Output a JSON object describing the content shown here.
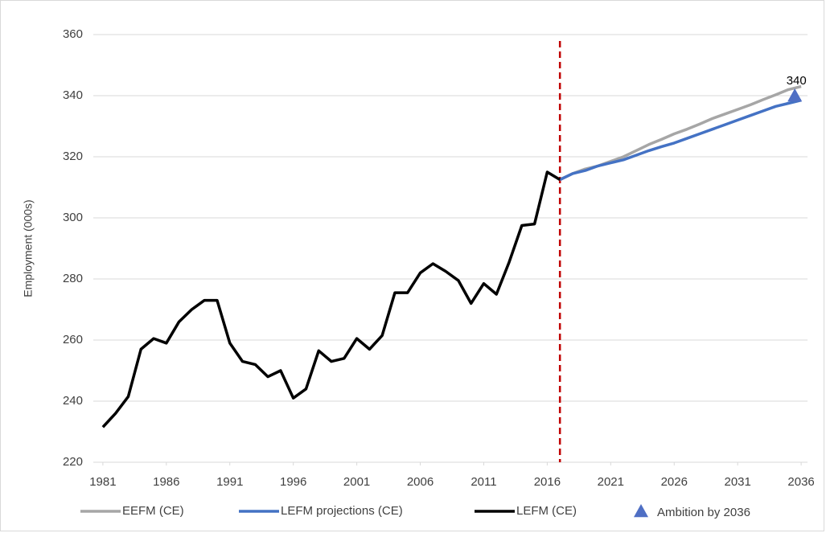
{
  "chart_data": {
    "type": "line",
    "y_label": "Employment (000s)",
    "xlim": [
      1980.5,
      2036.5
    ],
    "xticks": [
      1981,
      1986,
      1991,
      1996,
      2001,
      2006,
      2011,
      2016,
      2021,
      2026,
      2031,
      2036
    ],
    "ylim": [
      220,
      360
    ],
    "yticks": [
      220,
      240,
      260,
      280,
      300,
      320,
      340,
      360
    ],
    "grid": true,
    "vline": {
      "x": 2017,
      "color": "#c00000"
    },
    "legend": "bottom",
    "series": [
      {
        "name": "EEFM (CE)",
        "color": "#a6a6a6",
        "x": [
          2017,
          2018,
          2019,
          2020,
          2021,
          2022,
          2023,
          2024,
          2025,
          2026,
          2027,
          2028,
          2029,
          2030,
          2031,
          2032,
          2033,
          2034,
          2035,
          2036
        ],
        "values": [
          312.5,
          314.5,
          316,
          317,
          318.5,
          320,
          322,
          324,
          325.7,
          327.5,
          329,
          330.7,
          332.5,
          334,
          335.5,
          337,
          338.7,
          340.3,
          342,
          343
        ]
      },
      {
        "name": "LEFM projections (CE)",
        "color": "#4472c4",
        "x": [
          2017,
          2018,
          2019,
          2020,
          2021,
          2022,
          2023,
          2024,
          2025,
          2026,
          2027,
          2028,
          2029,
          2030,
          2031,
          2032,
          2033,
          2034,
          2035,
          2036
        ],
        "values": [
          312.5,
          314.5,
          315.5,
          317,
          318,
          319,
          320.5,
          322,
          323.3,
          324.5,
          326,
          327.5,
          329,
          330.5,
          332,
          333.5,
          335,
          336.5,
          337.5,
          338.5
        ]
      },
      {
        "name": "LEFM (CE)",
        "color": "#000000",
        "x": [
          1981,
          1982,
          1983,
          1984,
          1985,
          1986,
          1987,
          1988,
          1989,
          1990,
          1991,
          1992,
          1993,
          1994,
          1995,
          1996,
          1997,
          1998,
          1999,
          2000,
          2001,
          2002,
          2003,
          2004,
          2005,
          2006,
          2007,
          2008,
          2009,
          2010,
          2011,
          2012,
          2013,
          2014,
          2015,
          2016,
          2017
        ],
        "values": [
          231.5,
          236,
          241.5,
          257,
          260.5,
          259,
          266,
          270,
          273,
          273,
          259,
          253,
          252,
          248,
          250,
          241,
          244,
          256.5,
          253,
          254,
          260.5,
          257,
          261.5,
          275.5,
          275.5,
          282,
          285,
          282.5,
          279.5,
          272,
          278.5,
          275,
          285.5,
          297.5,
          298,
          315,
          312.5
        ]
      },
      {
        "name": "Ambition by 2036",
        "color": "#4f6fc4",
        "type": "scatter",
        "marker": "triangle",
        "x": [
          2035.5
        ],
        "values": [
          340
        ]
      }
    ]
  }
}
